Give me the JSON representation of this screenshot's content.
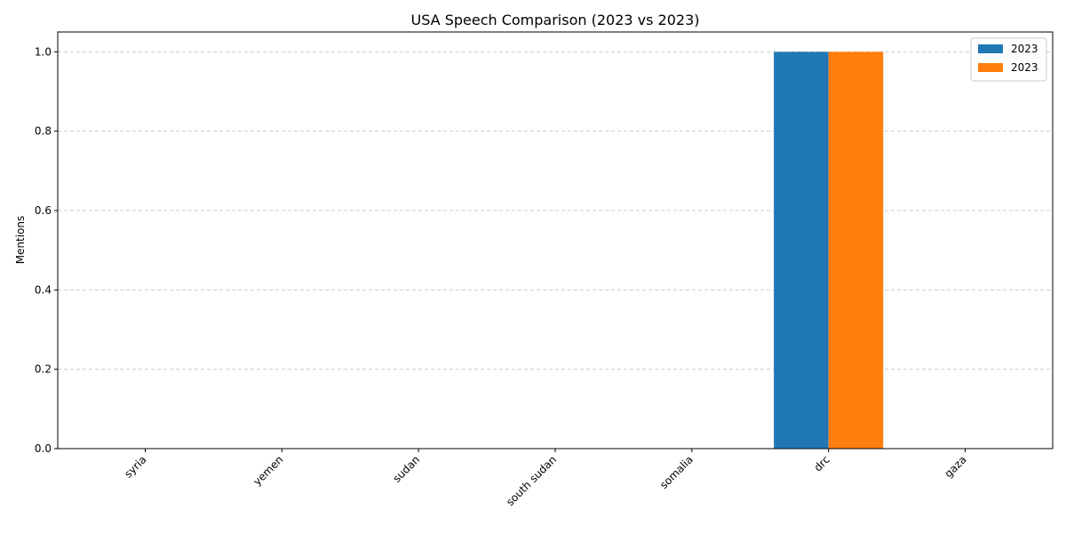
{
  "chart_data": {
    "type": "bar",
    "title": "USA Speech Comparison (2023 vs 2023)",
    "xlabel": "",
    "ylabel": "Mentions",
    "categories": [
      "syria",
      "yemen",
      "sudan",
      "south sudan",
      "somalia",
      "drc",
      "gaza"
    ],
    "series": [
      {
        "name": "2023",
        "color": "#1f77b4",
        "values": [
          0,
          0,
          0,
          0,
          0,
          1,
          0
        ]
      },
      {
        "name": "2023",
        "color": "#ff7f0e",
        "values": [
          0,
          0,
          0,
          0,
          0,
          1,
          0
        ]
      }
    ],
    "ylim": [
      0,
      1.05
    ],
    "yticks": [
      "0.0",
      "0.2",
      "0.4",
      "0.6",
      "0.8",
      "1.0"
    ],
    "grid": "y-dashed",
    "legend_position": "top-right"
  }
}
